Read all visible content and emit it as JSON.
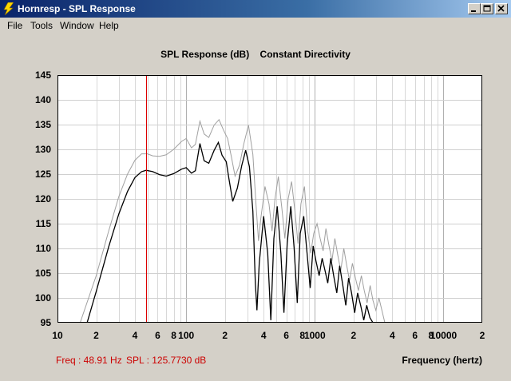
{
  "window": {
    "title": "Hornresp - SPL Response",
    "minimize_glyph": "minimize",
    "maximize_glyph": "maximize",
    "close_glyph": "close"
  },
  "menu": [
    "File",
    "Tools",
    "Window",
    "Help"
  ],
  "plot": {
    "title": "SPL Response (dB)    Constant Directivity",
    "readout_freq": "Freq : 48.91 Hz",
    "readout_spl": "SPL : 125.7730 dB",
    "x_caption": "Frequency (hertz)",
    "cursor_color": "#dd0000",
    "y_tick_labels": [
      "145",
      "140",
      "135",
      "130",
      "125",
      "120",
      "115",
      "110",
      "105",
      "100",
      "95"
    ],
    "x_tick_labels": [
      {
        "label": "10",
        "f": 10
      },
      {
        "label": "2",
        "f": 20
      },
      {
        "label": "4",
        "f": 40
      },
      {
        "label": "6",
        "f": 60
      },
      {
        "label": "8",
        "f": 80
      },
      {
        "label": "100",
        "f": 100
      },
      {
        "label": "2",
        "f": 200
      },
      {
        "label": "4",
        "f": 400
      },
      {
        "label": "6",
        "f": 600
      },
      {
        "label": "8",
        "f": 800
      },
      {
        "label": "1000",
        "f": 1000
      },
      {
        "label": "2",
        "f": 2000
      },
      {
        "label": "4",
        "f": 4000
      },
      {
        "label": "6",
        "f": 6000
      },
      {
        "label": "8",
        "f": 8000
      },
      {
        "label": "10000",
        "f": 10000
      },
      {
        "label": "2",
        "f": 20000
      }
    ]
  },
  "chart_data": {
    "type": "line",
    "title": "SPL Response (dB)    Constant Directivity",
    "xlabel": "Frequency (hertz)",
    "ylabel": "",
    "x_scale": "log",
    "xlim": [
      10,
      20000
    ],
    "ylim": [
      95,
      145
    ],
    "grid": true,
    "cursor": {
      "freq": 48.91,
      "spl": 125.773
    },
    "series": [
      {
        "color": "#000000",
        "points": [
          [
            17,
            95
          ],
          [
            20,
            101.3
          ],
          [
            25,
            110.3
          ],
          [
            30,
            117
          ],
          [
            35,
            121.5
          ],
          [
            40,
            124.3
          ],
          [
            45,
            125.5
          ],
          [
            48.91,
            125.773
          ],
          [
            55,
            125.5
          ],
          [
            62,
            124.9
          ],
          [
            70,
            124.6
          ],
          [
            80,
            125.1
          ],
          [
            92,
            126
          ],
          [
            100,
            126.3
          ],
          [
            110,
            125.2
          ],
          [
            118,
            125.7
          ],
          [
            128,
            131.2
          ],
          [
            138,
            127.7
          ],
          [
            150,
            127.2
          ],
          [
            165,
            129.8
          ],
          [
            178,
            131.4
          ],
          [
            190,
            128.8
          ],
          [
            205,
            127.5
          ],
          [
            215,
            124.1
          ],
          [
            230,
            119.5
          ],
          [
            250,
            122.2
          ],
          [
            270,
            126.7
          ],
          [
            290,
            129.8
          ],
          [
            310,
            126.5
          ],
          [
            330,
            117.5
          ],
          [
            345,
            103
          ],
          [
            355,
            97.5
          ],
          [
            370,
            107
          ],
          [
            400,
            116.5
          ],
          [
            430,
            109
          ],
          [
            455,
            95.5
          ],
          [
            480,
            112
          ],
          [
            510,
            118.5
          ],
          [
            545,
            109
          ],
          [
            575,
            97
          ],
          [
            610,
            111
          ],
          [
            650,
            118.5
          ],
          [
            690,
            110
          ],
          [
            730,
            99
          ],
          [
            770,
            113
          ],
          [
            820,
            116.5
          ],
          [
            870,
            109
          ],
          [
            920,
            102
          ],
          [
            970,
            110.5
          ],
          [
            1020,
            107.5
          ],
          [
            1080,
            104.5
          ],
          [
            1140,
            108
          ],
          [
            1200,
            105.5
          ],
          [
            1260,
            103
          ],
          [
            1330,
            108
          ],
          [
            1400,
            104.5
          ],
          [
            1480,
            101
          ],
          [
            1560,
            106.5
          ],
          [
            1650,
            102.5
          ],
          [
            1740,
            98.5
          ],
          [
            1830,
            104
          ],
          [
            1930,
            101
          ],
          [
            2040,
            97
          ],
          [
            2150,
            101
          ],
          [
            2270,
            98.5
          ],
          [
            2400,
            95.5
          ],
          [
            2530,
            98.5
          ],
          [
            2680,
            96
          ],
          [
            2830,
            95
          ]
        ]
      },
      {
        "color": "#a0a0a0",
        "points": [
          [
            15,
            95
          ],
          [
            20,
            104.5
          ],
          [
            25,
            113.5
          ],
          [
            30,
            120.5
          ],
          [
            35,
            125
          ],
          [
            40,
            127.8
          ],
          [
            45,
            129.1
          ],
          [
            50,
            129.1
          ],
          [
            55,
            128.7
          ],
          [
            62,
            128.6
          ],
          [
            70,
            128.9
          ],
          [
            80,
            130
          ],
          [
            92,
            131.6
          ],
          [
            100,
            132.2
          ],
          [
            110,
            130.3
          ],
          [
            118,
            131
          ],
          [
            128,
            135.7
          ],
          [
            138,
            133.1
          ],
          [
            150,
            132.4
          ],
          [
            165,
            134.9
          ],
          [
            180,
            136
          ],
          [
            195,
            133.9
          ],
          [
            210,
            132.2
          ],
          [
            225,
            128.4
          ],
          [
            240,
            124.6
          ],
          [
            260,
            126.8
          ],
          [
            280,
            131
          ],
          [
            305,
            134.9
          ],
          [
            330,
            129
          ],
          [
            350,
            118.5
          ],
          [
            365,
            111.5
          ],
          [
            380,
            116
          ],
          [
            410,
            122.5
          ],
          [
            440,
            119
          ],
          [
            465,
            113.5
          ],
          [
            490,
            120
          ],
          [
            520,
            124.5
          ],
          [
            555,
            118
          ],
          [
            585,
            112
          ],
          [
            620,
            120
          ],
          [
            660,
            123.5
          ],
          [
            700,
            117.5
          ],
          [
            740,
            111
          ],
          [
            780,
            119
          ],
          [
            830,
            122.5
          ],
          [
            880,
            113.5
          ],
          [
            930,
            109
          ],
          [
            980,
            113
          ],
          [
            1040,
            115
          ],
          [
            1100,
            112
          ],
          [
            1160,
            109.5
          ],
          [
            1220,
            114
          ],
          [
            1290,
            110.5
          ],
          [
            1360,
            107.5
          ],
          [
            1430,
            112
          ],
          [
            1510,
            108.5
          ],
          [
            1590,
            105.5
          ],
          [
            1680,
            110
          ],
          [
            1770,
            106.5
          ],
          [
            1860,
            103.5
          ],
          [
            1960,
            107
          ],
          [
            2070,
            104
          ],
          [
            2180,
            101.5
          ],
          [
            2300,
            104.5
          ],
          [
            2420,
            101.5
          ],
          [
            2550,
            99
          ],
          [
            2690,
            102.5
          ],
          [
            2830,
            99.5
          ],
          [
            2980,
            97.5
          ],
          [
            3150,
            100
          ],
          [
            3320,
            97.5
          ],
          [
            3500,
            95
          ]
        ]
      }
    ]
  }
}
